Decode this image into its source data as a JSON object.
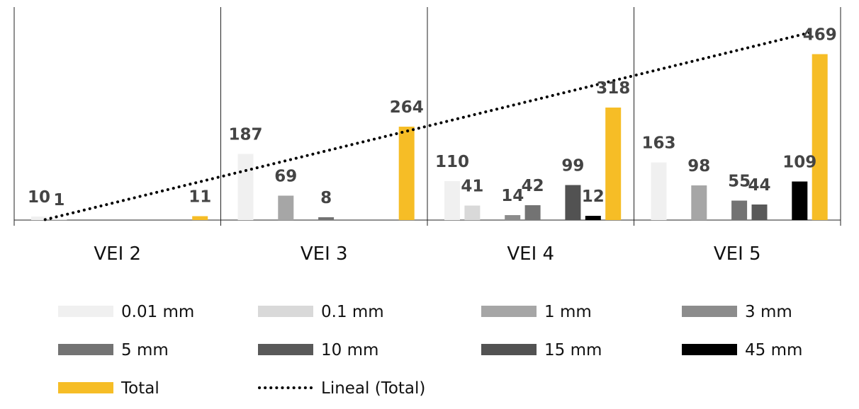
{
  "chart_data": {
    "type": "bar",
    "categories": [
      "VEI 2",
      "VEI 3",
      "VEI 4",
      "VEI 5"
    ],
    "series": [
      {
        "name": "0.01 mm",
        "color": "#f0f0f0",
        "values": [
          10,
          187,
          110,
          163
        ]
      },
      {
        "name": "0.1 mm",
        "color": "#d9d9d9",
        "values": [
          1,
          null,
          41,
          null
        ]
      },
      {
        "name": "1 mm",
        "color": "#a6a6a6",
        "values": [
          null,
          69,
          null,
          98
        ]
      },
      {
        "name": "3 mm",
        "color": "#8c8c8c",
        "values": [
          null,
          null,
          14,
          null
        ]
      },
      {
        "name": "5 mm",
        "color": "#737373",
        "values": [
          null,
          8,
          42,
          55
        ]
      },
      {
        "name": "10 mm",
        "color": "#595959",
        "values": [
          null,
          null,
          null,
          44
        ]
      },
      {
        "name": "15 mm",
        "color": "#525252",
        "values": [
          null,
          null,
          99,
          null
        ]
      },
      {
        "name": "45 mm",
        "color": "#000000",
        "values": [
          null,
          null,
          12,
          109
        ]
      },
      {
        "name": "Total",
        "color": "#f6bd26",
        "values": [
          11,
          264,
          318,
          469
        ]
      }
    ],
    "trendline": {
      "name": "Lineal (Total)",
      "color": "#000000",
      "style": "dotted",
      "of_series": "Total"
    },
    "ylim": [
      0,
      520
    ],
    "legend_position": "bottom",
    "grid": false
  }
}
